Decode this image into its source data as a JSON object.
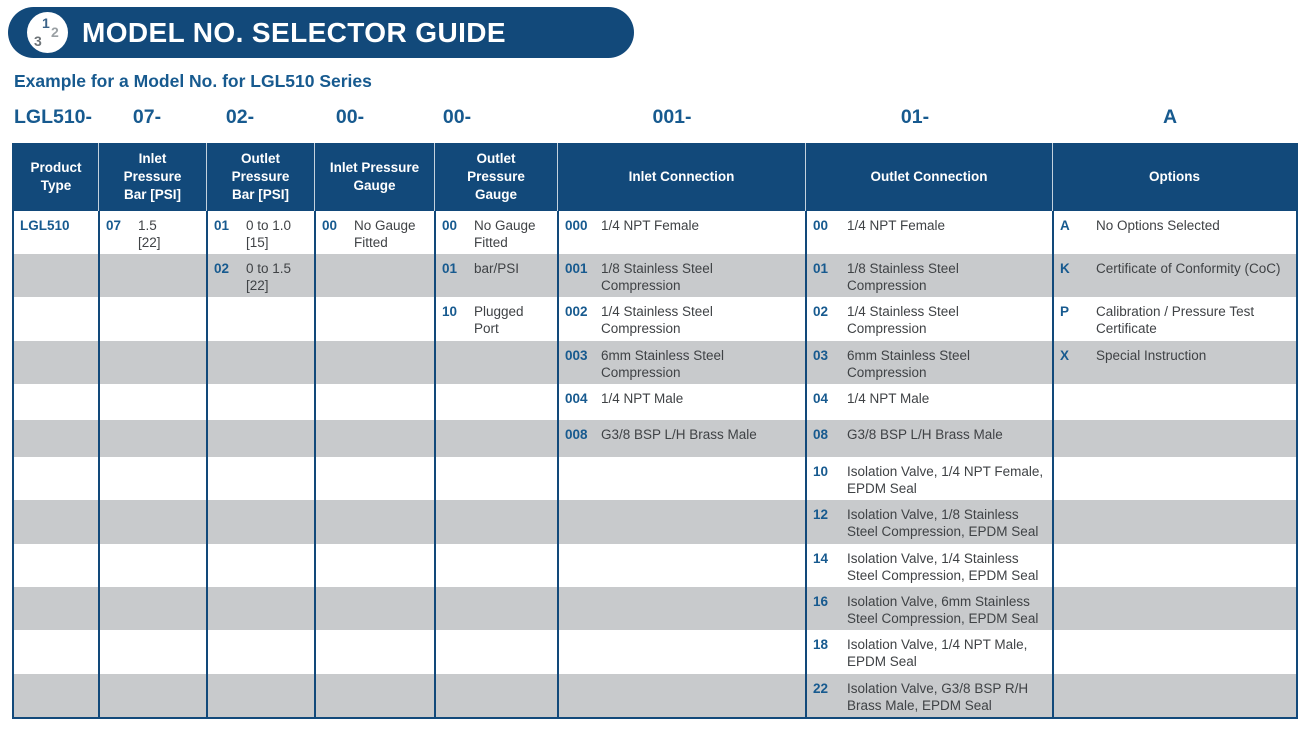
{
  "colors": {
    "navy": "#12497a",
    "blue_text": "#175a8f",
    "row_stripe": "#c8cacc",
    "body_text": "#3f4245"
  },
  "banner": {
    "title": "MODEL NO. SELECTOR GUIDE",
    "icon": {
      "numbers": [
        "1",
        "2",
        "3"
      ]
    }
  },
  "subtitle": "Example for a Model No. for LGL510 Series",
  "model_number": {
    "segments": [
      "LGL510-",
      "07-",
      "02-",
      "00-",
      "00-",
      "001-",
      "01-",
      "A"
    ]
  },
  "table": {
    "columns": [
      {
        "label": "Product\nType"
      },
      {
        "label": "Inlet\nPressure\nBar [PSI]"
      },
      {
        "label": "Outlet\nPressure\nBar [PSI]"
      },
      {
        "label": "Inlet Pressure\nGauge"
      },
      {
        "label": "Outlet\nPressure\nGauge"
      },
      {
        "label": "Inlet Connection"
      },
      {
        "label": "Outlet Connection"
      },
      {
        "label": "Options"
      }
    ],
    "rows": [
      [
        {
          "code": "LGL510",
          "text": ""
        },
        {
          "code": "07",
          "text": "1.5\n[22]"
        },
        {
          "code": "01",
          "text": "0 to 1.0\n[15]"
        },
        {
          "code": "00",
          "text": "No Gauge\nFitted"
        },
        {
          "code": "00",
          "text": "No Gauge\nFitted"
        },
        {
          "code": "000",
          "text": "1/4 NPT Female"
        },
        {
          "code": "00",
          "text": "1/4 NPT Female"
        },
        {
          "code": "A",
          "text": "No Options Selected"
        }
      ],
      [
        null,
        null,
        {
          "code": "02",
          "text": "0 to 1.5\n[22]"
        },
        null,
        {
          "code": "01",
          "text": "bar/PSI"
        },
        {
          "code": "001",
          "text": "1/8 Stainless Steel\nCompression"
        },
        {
          "code": "01",
          "text": "1/8 Stainless Steel\nCompression"
        },
        {
          "code": "K",
          "text": "Certificate of Conformity (CoC)"
        }
      ],
      [
        null,
        null,
        null,
        null,
        {
          "code": "10",
          "text": "Plugged\nPort"
        },
        {
          "code": "002",
          "text": "1/4 Stainless Steel\nCompression"
        },
        {
          "code": "02",
          "text": "1/4 Stainless Steel\nCompression"
        },
        {
          "code": "P",
          "text": "Calibration / Pressure Test\nCertificate"
        }
      ],
      [
        null,
        null,
        null,
        null,
        null,
        {
          "code": "003",
          "text": "6mm Stainless Steel\nCompression"
        },
        {
          "code": "03",
          "text": "6mm Stainless Steel\nCompression"
        },
        {
          "code": "X",
          "text": "Special Instruction"
        }
      ],
      [
        null,
        null,
        null,
        null,
        null,
        {
          "code": "004",
          "text": "1/4 NPT Male"
        },
        {
          "code": "04",
          "text": "1/4 NPT Male"
        },
        null
      ],
      [
        null,
        null,
        null,
        null,
        null,
        {
          "code": "008",
          "text": "G3/8 BSP L/H Brass Male"
        },
        {
          "code": "08",
          "text": "G3/8 BSP L/H Brass Male"
        },
        null
      ],
      [
        null,
        null,
        null,
        null,
        null,
        null,
        {
          "code": "10",
          "text": "Isolation Valve, 1/4 NPT Female,\nEPDM Seal"
        },
        null
      ],
      [
        null,
        null,
        null,
        null,
        null,
        null,
        {
          "code": "12",
          "text": "Isolation Valve, 1/8 Stainless\nSteel Compression, EPDM Seal"
        },
        null
      ],
      [
        null,
        null,
        null,
        null,
        null,
        null,
        {
          "code": "14",
          "text": "Isolation Valve, 1/4 Stainless\nSteel Compression, EPDM Seal"
        },
        null
      ],
      [
        null,
        null,
        null,
        null,
        null,
        null,
        {
          "code": "16",
          "text": "Isolation Valve, 6mm Stainless\nSteel Compression, EPDM Seal"
        },
        null
      ],
      [
        null,
        null,
        null,
        null,
        null,
        null,
        {
          "code": "18",
          "text": "Isolation Valve, 1/4 NPT Male,\nEPDM Seal"
        },
        null
      ],
      [
        null,
        null,
        null,
        null,
        null,
        null,
        {
          "code": "22",
          "text": "Isolation Valve, G3/8 BSP R/H\nBrass Male, EPDM Seal"
        },
        null
      ]
    ]
  }
}
